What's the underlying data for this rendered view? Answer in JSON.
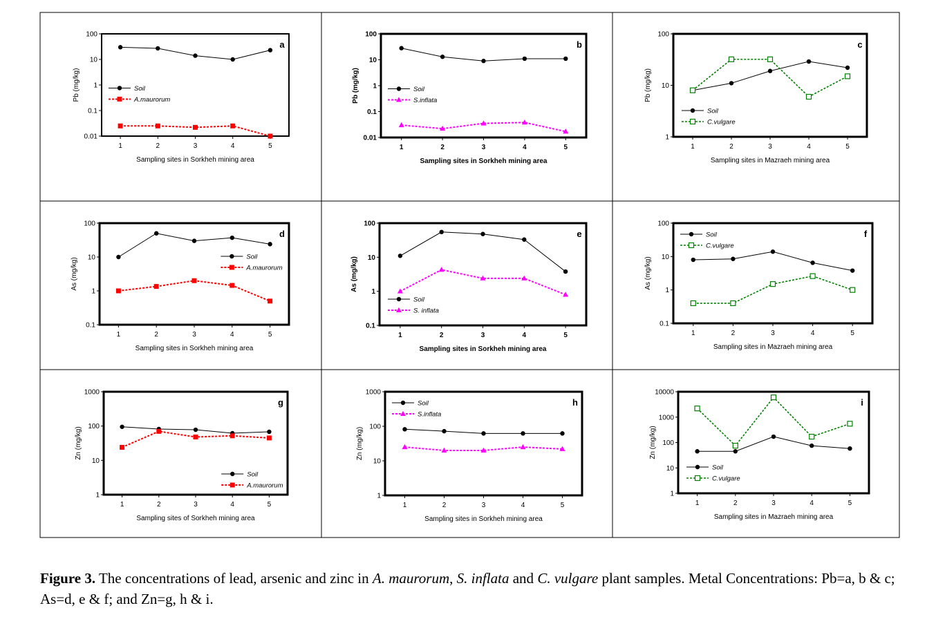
{
  "figure": {
    "caption_label": "Figure 3.",
    "caption_segments": [
      {
        "text": " The concentrations of lead, arsenic and zinc in ",
        "italic": false
      },
      {
        "text": "A. maurorum",
        "italic": true
      },
      {
        "text": ", ",
        "italic": false
      },
      {
        "text": "S. inflata",
        "italic": true
      },
      {
        "text": " and ",
        "italic": false
      },
      {
        "text": "C. vulgare",
        "italic": true
      },
      {
        "text": " plant samples. Metal Concentrations: Pb=a, b & c; As=d, e & f; and Zn=g, h & i.",
        "italic": false
      }
    ]
  },
  "colors": {
    "soil": "#000000",
    "a_maurorum": "#ff0000",
    "s_inflata": "#ff00ff",
    "c_vulgare": "#008000",
    "frame": "#000000"
  },
  "chart_data": [
    {
      "id": "a",
      "type": "line",
      "letter": "a",
      "ylabel": "Pb (mg/kg)",
      "xlabel": "Sampling sites in Sorkheh mining area",
      "yscale": "log",
      "ylim": [
        0.01,
        100
      ],
      "yticks": [
        "0.01",
        "0.1",
        "1",
        "10",
        "100"
      ],
      "categories": [
        "1",
        "2",
        "3",
        "4",
        "5"
      ],
      "legend": "middle-left",
      "bold_labels": false,
      "thick_frame": false,
      "series": [
        {
          "name": "Soil",
          "values": [
            30,
            27,
            14,
            10,
            23
          ],
          "style": "soil"
        },
        {
          "name": "A.maurorum",
          "values": [
            0.025,
            0.025,
            0.022,
            0.025,
            0.01
          ],
          "style": "a_maurorum"
        }
      ]
    },
    {
      "id": "b",
      "type": "line",
      "letter": "b",
      "ylabel": "Pb (mg/kg)",
      "xlabel": "Sampling sites in Sorkheh mining area",
      "yscale": "log",
      "ylim": [
        0.01,
        100
      ],
      "yticks": [
        "0.01",
        "0.1",
        "1",
        "10",
        "100"
      ],
      "categories": [
        "1",
        "2",
        "3",
        "4",
        "5"
      ],
      "legend": "middle-left",
      "bold_labels": true,
      "thick_frame": true,
      "series": [
        {
          "name": "Soil",
          "values": [
            28,
            13,
            9,
            11,
            11
          ],
          "style": "soil"
        },
        {
          "name": "S.inflata",
          "values": [
            0.03,
            0.022,
            0.035,
            0.038,
            0.017
          ],
          "style": "s_inflata"
        }
      ]
    },
    {
      "id": "c",
      "type": "line",
      "letter": "c",
      "ylabel": "Pb (mg/kg)",
      "xlabel": "Sampling sites in Mazraeh mining area",
      "yscale": "log",
      "ylim": [
        1,
        100
      ],
      "yticks": [
        "1",
        "10",
        "100"
      ],
      "categories": [
        "1",
        "2",
        "3",
        "4",
        "5"
      ],
      "legend": "bottom-left",
      "bold_labels": false,
      "thick_frame": true,
      "series": [
        {
          "name": "Soil",
          "values": [
            8,
            11,
            19,
            29,
            22
          ],
          "style": "soil"
        },
        {
          "name": "C.vulgare",
          "values": [
            8,
            32,
            32,
            6,
            15
          ],
          "style": "c_vulgare"
        }
      ]
    },
    {
      "id": "d",
      "type": "line",
      "letter": "d",
      "ylabel": "As (mg/kg)",
      "xlabel": "Sampling sites in Sorkheh mining area",
      "yscale": "log",
      "ylim": [
        0.1,
        100
      ],
      "yticks": [
        "0.1",
        "1",
        "10",
        "100"
      ],
      "categories": [
        "1",
        "2",
        "3",
        "4",
        "5"
      ],
      "legend": "middle-right",
      "bold_labels": false,
      "thick_frame": true,
      "series": [
        {
          "name": "Soil",
          "values": [
            10,
            50,
            30,
            37,
            24
          ],
          "style": "soil"
        },
        {
          "name": "A.maurorum",
          "values": [
            1,
            1.35,
            2,
            1.45,
            0.5
          ],
          "style": "a_maurorum"
        }
      ]
    },
    {
      "id": "e",
      "type": "line",
      "letter": "e",
      "ylabel": "As (mg/kg)",
      "xlabel": "Sampling sites in Sorkheh mining area",
      "yscale": "log",
      "ylim": [
        0.1,
        100
      ],
      "yticks": [
        "0.1",
        "1",
        "10",
        "100"
      ],
      "categories": [
        "1",
        "2",
        "3",
        "4",
        "5"
      ],
      "legend": "bottom-left",
      "bold_labels": true,
      "thick_frame": true,
      "series": [
        {
          "name": "Soil",
          "values": [
            11,
            55,
            48,
            33,
            3.8
          ],
          "style": "soil"
        },
        {
          "name": "S. inflata",
          "values": [
            1,
            4.3,
            2.4,
            2.4,
            0.8
          ],
          "style": "s_inflata"
        }
      ]
    },
    {
      "id": "f",
      "type": "line",
      "letter": "f",
      "ylabel": "As (mg/kg)",
      "xlabel": "Sampling sites in Mazraeh mining area",
      "yscale": "log",
      "ylim": [
        0.1,
        100
      ],
      "yticks": [
        "0.1",
        "1",
        "10",
        "100"
      ],
      "categories": [
        "1",
        "2",
        "3",
        "4",
        "5"
      ],
      "legend": "top-left",
      "bold_labels": false,
      "thick_frame": true,
      "series": [
        {
          "name": "Soil",
          "values": [
            8,
            8.5,
            14,
            6.5,
            3.8
          ],
          "style": "soil"
        },
        {
          "name": "C.vulgare",
          "values": [
            0.4,
            0.4,
            1.5,
            2.6,
            1
          ],
          "style": "c_vulgare"
        }
      ]
    },
    {
      "id": "g",
      "type": "line",
      "letter": "g",
      "ylabel": "Zn (mg/kg)",
      "xlabel": "Sampling sites of Sorkheh mining area",
      "yscale": "log",
      "ylim": [
        1,
        1000
      ],
      "yticks": [
        "1",
        "10",
        "100",
        "1000"
      ],
      "categories": [
        "1",
        "2",
        "3",
        "4",
        "5"
      ],
      "legend": "bottom-right",
      "bold_labels": false,
      "thick_frame": true,
      "series": [
        {
          "name": "Soil",
          "values": [
            95,
            82,
            78,
            62,
            68
          ],
          "style": "soil"
        },
        {
          "name": "A.maurorum",
          "values": [
            24,
            70,
            48,
            52,
            45
          ],
          "style": "a_maurorum"
        }
      ]
    },
    {
      "id": "h",
      "type": "line",
      "letter": "h",
      "ylabel": "Zn (mg/kg)",
      "xlabel": "Sampling sites in Sorkheh mining area",
      "yscale": "log",
      "ylim": [
        1,
        1000
      ],
      "yticks": [
        "1",
        "10",
        "100",
        "1000"
      ],
      "categories": [
        "1",
        "2",
        "3",
        "4",
        "5"
      ],
      "legend": "top-left",
      "bold_labels": false,
      "thick_frame": true,
      "series": [
        {
          "name": "Soil",
          "values": [
            82,
            72,
            62,
            62,
            62
          ],
          "style": "soil"
        },
        {
          "name": "S.inflata",
          "values": [
            25,
            20,
            20,
            25,
            22
          ],
          "style": "s_inflata"
        }
      ]
    },
    {
      "id": "i",
      "type": "line",
      "letter": "i",
      "ylabel": "Zn (mg/kg)",
      "xlabel": "Sampling sites in Mazraeh mining area",
      "yscale": "log",
      "ylim": [
        1,
        10000
      ],
      "yticks": [
        "1",
        "10",
        "100",
        "1000",
        "10000"
      ],
      "categories": [
        "1",
        "2",
        "3",
        "4",
        "5"
      ],
      "legend": "bottom-left",
      "bold_labels": false,
      "thick_frame": true,
      "series": [
        {
          "name": "Soil",
          "values": [
            45,
            45,
            170,
            75,
            58
          ],
          "style": "soil"
        },
        {
          "name": "C.vulgare",
          "values": [
            2200,
            75,
            6000,
            170,
            550
          ],
          "style": "c_vulgare"
        }
      ]
    }
  ]
}
